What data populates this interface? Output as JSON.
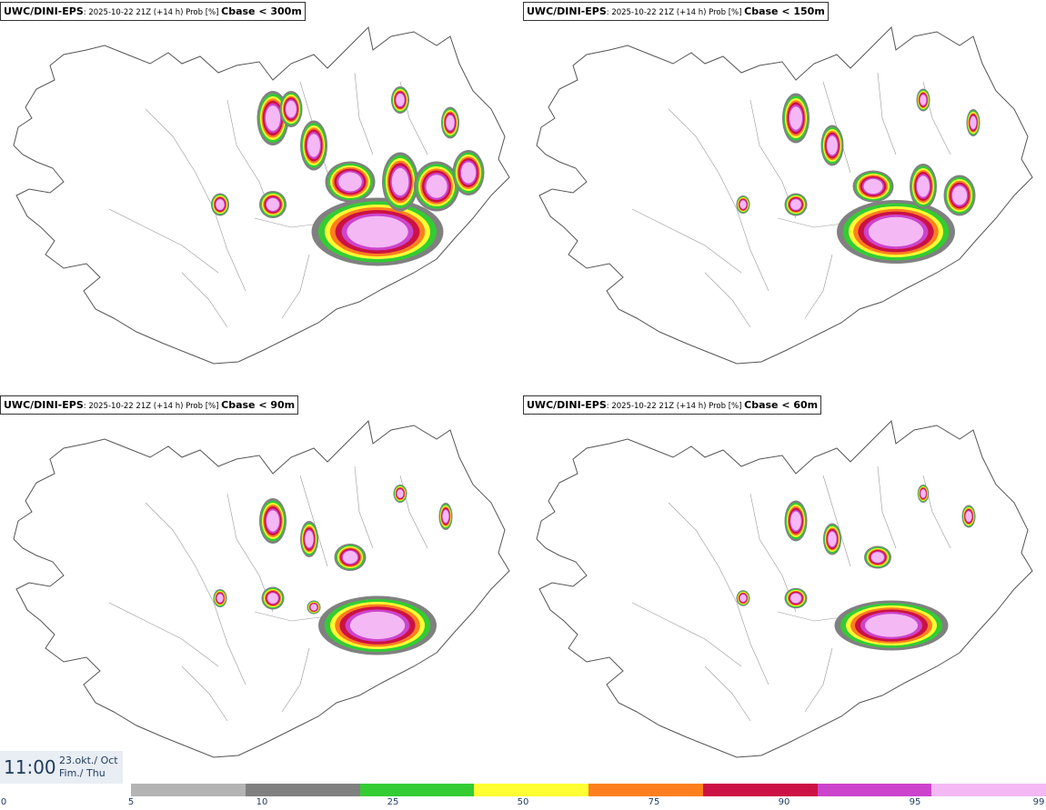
{
  "panels": [
    {
      "model": "UWC/DINI-EPS",
      "meta": ": 2025-10-22 21Z (+14 h) Prob [%] ",
      "variable": "Cbase < 300m"
    },
    {
      "model": "UWC/DINI-EPS",
      "meta": ": 2025-10-22 21Z (+14 h) Prob [%] ",
      "variable": "Cbase < 150m"
    },
    {
      "model": "UWC/DINI-EPS",
      "meta": ": 2025-10-22 21Z (+14 h) Prob [%] ",
      "variable": "Cbase < 90m"
    },
    {
      "model": "UWC/DINI-EPS",
      "meta": ": 2025-10-22 21Z (+14 h) Prob [%] ",
      "variable": "Cbase < 60m"
    }
  ],
  "valid_time": {
    "time": "11:00",
    "date_line1": "23.okt./ Oct",
    "date_line2": "Fim./ Thu"
  },
  "legend": {
    "ticks": [
      "0",
      "5",
      "10",
      "25",
      "50",
      "75",
      "90",
      "95",
      "99"
    ],
    "colors": [
      "#b4b4b4",
      "#808080",
      "#33cc33",
      "#ffff33",
      "#ff7f1e",
      "#cc1144",
      "#cc44cc",
      "#f4b8f4"
    ]
  }
}
